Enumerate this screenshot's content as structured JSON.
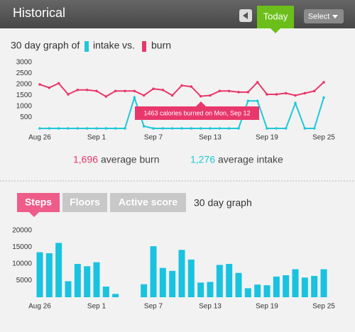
{
  "header": {
    "title": "Historical",
    "today": "Today",
    "select": "Select"
  },
  "graph_heading": {
    "prefix": "30 day graph of",
    "joiner": "vs."
  },
  "averages": {
    "burn_value": "1,696",
    "burn_label": "average burn",
    "intake_value": "1,276",
    "intake_label": "average intake"
  },
  "tabs": [
    "Steps",
    "Floors",
    "Active score"
  ],
  "tab_caption": "30 day graph",
  "chart_data": [
    {
      "type": "line",
      "categories": [
        "Aug 26",
        null,
        null,
        null,
        null,
        null,
        "Sep 1",
        null,
        null,
        null,
        null,
        null,
        "Sep 7",
        null,
        null,
        null,
        null,
        null,
        "Sep 13",
        null,
        null,
        null,
        null,
        null,
        "Sep 19",
        null,
        null,
        null,
        null,
        null,
        "Sep 25"
      ],
      "series": [
        {
          "name": "burn",
          "color": "#e8386b",
          "values": [
            2000,
            1850,
            2050,
            1550,
            1750,
            1750,
            1700,
            1450,
            1700,
            1700,
            1700,
            1500,
            1800,
            1750,
            1500,
            1950,
            1900,
            1463,
            1500,
            1700,
            1700,
            1650,
            1650,
            2100,
            1550,
            1550,
            1600,
            1500,
            1600,
            1700,
            2100
          ]
        },
        {
          "name": "intake",
          "color": "#1ec8d8",
          "values": [
            0,
            0,
            0,
            0,
            0,
            0,
            0,
            0,
            0,
            0,
            1400,
            100,
            0,
            0,
            0,
            0,
            0,
            0,
            0,
            0,
            0,
            0,
            1250,
            1250,
            0,
            0,
            0,
            1150,
            0,
            0,
            1400
          ]
        }
      ],
      "annotation": "1463 calories burned on Mon, Sep 12",
      "ylim": [
        0,
        3000
      ],
      "yticks": [
        500,
        1000,
        1500,
        2000,
        2500,
        3000
      ],
      "grid": false
    },
    {
      "type": "bar",
      "categories": [
        "Aug 26",
        null,
        null,
        null,
        null,
        null,
        "Sep 1",
        null,
        null,
        null,
        null,
        null,
        "Sep 7",
        null,
        null,
        null,
        null,
        null,
        "Sep 13",
        null,
        null,
        null,
        null,
        null,
        "Sep 19",
        null,
        null,
        null,
        null,
        null,
        "Sep 25"
      ],
      "values": [
        13500,
        13200,
        16300,
        4800,
        10000,
        9300,
        10500,
        3200,
        1000,
        0,
        0,
        3900,
        15300,
        8800,
        7900,
        14200,
        11300,
        4400,
        4600,
        9700,
        10000,
        7300,
        2700,
        3800,
        3600,
        6200,
        6600,
        8400,
        5900,
        6400,
        8400
      ],
      "color": "#19c3e0",
      "ylim": [
        0,
        20000
      ],
      "yticks": [
        5000,
        10000,
        15000,
        20000
      ],
      "grid": false
    }
  ]
}
